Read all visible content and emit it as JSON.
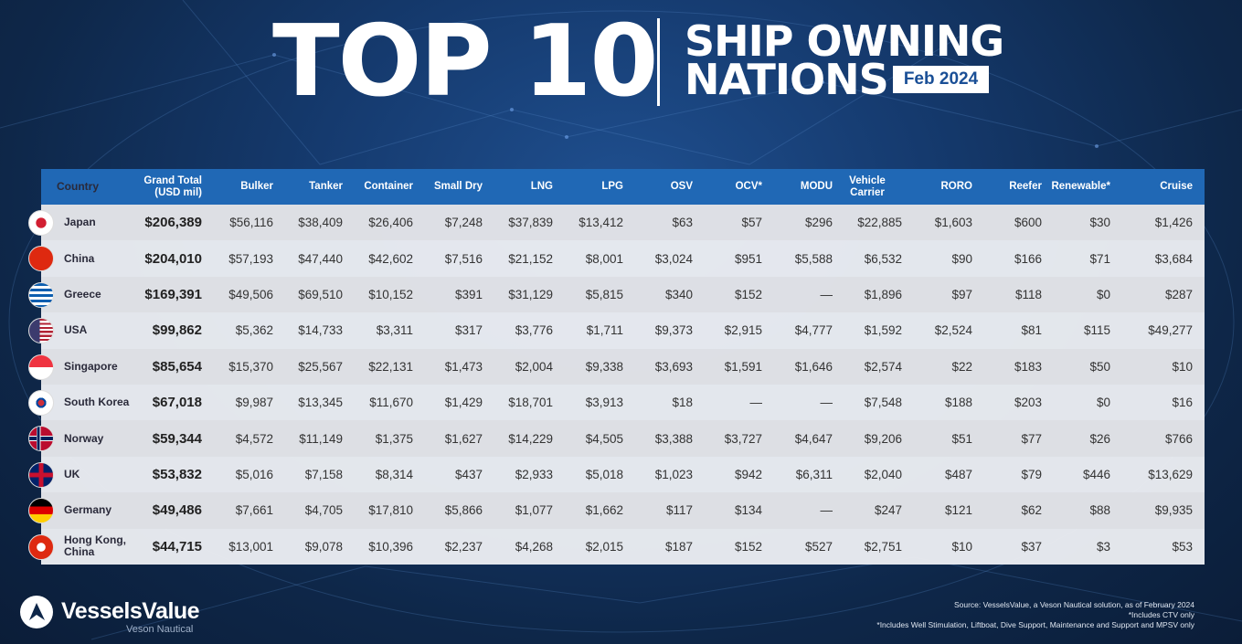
{
  "header": {
    "title_big": "TOP 10",
    "subtitle_line1": "SHIP OWNING",
    "subtitle_line2": "NATIONS",
    "date_badge": "Feb 2024"
  },
  "footer": {
    "source": "Source: VesselsValue, a Veson Nautical solution, as of February 2024",
    "note1": "*Includes CTV only",
    "note2": "*Includes Well Stimulation, Liftboat, Dive Support, Maintenance and Support and MPSV only"
  },
  "logo": {
    "name": "VesselsValue",
    "tagline": "Veson Nautical"
  },
  "colors": {
    "header_bg": "#2068b5",
    "badge_text": "#1a4f96",
    "background": "#153a6e"
  },
  "chart_data": {
    "type": "table",
    "title": "TOP 10 SHIP OWNING NATIONS Feb 2024",
    "columns": [
      "Country",
      "Grand Total (USD mil)",
      "Bulker",
      "Tanker",
      "Container",
      "Small Dry",
      "LNG",
      "LPG",
      "OSV",
      "OCV*",
      "MODU",
      "Vehicle Carrier",
      "RORO",
      "Reefer",
      "Renewable*",
      "Cruise"
    ],
    "rows": [
      {
        "flag": "japan",
        "cells": [
          "Japan",
          "$206,389",
          "$56,116",
          "$38,409",
          "$26,406",
          "$7,248",
          "$37,839",
          "$13,412",
          "$63",
          "$57",
          "$296",
          "$22,885",
          "$1,603",
          "$600",
          "$30",
          "$1,426"
        ]
      },
      {
        "flag": "china",
        "cells": [
          "China",
          "$204,010",
          "$57,193",
          "$47,440",
          "$42,602",
          "$7,516",
          "$21,152",
          "$8,001",
          "$3,024",
          "$951",
          "$5,588",
          "$6,532",
          "$90",
          "$166",
          "$71",
          "$3,684"
        ]
      },
      {
        "flag": "greece",
        "cells": [
          "Greece",
          "$169,391",
          "$49,506",
          "$69,510",
          "$10,152",
          "$391",
          "$31,129",
          "$5,815",
          "$340",
          "$152",
          "—",
          "$1,896",
          "$97",
          "$118",
          "$0",
          "$287"
        ]
      },
      {
        "flag": "usa",
        "cells": [
          "USA",
          "$99,862",
          "$5,362",
          "$14,733",
          "$3,311",
          "$317",
          "$3,776",
          "$1,711",
          "$9,373",
          "$2,915",
          "$4,777",
          "$1,592",
          "$2,524",
          "$81",
          "$115",
          "$49,277"
        ]
      },
      {
        "flag": "singapore",
        "cells": [
          "Singapore",
          "$85,654",
          "$15,370",
          "$25,567",
          "$22,131",
          "$1,473",
          "$2,004",
          "$9,338",
          "$3,693",
          "$1,591",
          "$1,646",
          "$2,574",
          "$22",
          "$183",
          "$50",
          "$10"
        ]
      },
      {
        "flag": "south-korea",
        "cells": [
          "South Korea",
          "$67,018",
          "$9,987",
          "$13,345",
          "$11,670",
          "$1,429",
          "$18,701",
          "$3,913",
          "$18",
          "—",
          "—",
          "$7,548",
          "$188",
          "$203",
          "$0",
          "$16"
        ]
      },
      {
        "flag": "norway",
        "cells": [
          "Norway",
          "$59,344",
          "$4,572",
          "$11,149",
          "$1,375",
          "$1,627",
          "$14,229",
          "$4,505",
          "$3,388",
          "$3,727",
          "$4,647",
          "$9,206",
          "$51",
          "$77",
          "$26",
          "$766"
        ]
      },
      {
        "flag": "uk",
        "cells": [
          "UK",
          "$53,832",
          "$5,016",
          "$7,158",
          "$8,314",
          "$437",
          "$2,933",
          "$5,018",
          "$1,023",
          "$942",
          "$6,311",
          "$2,040",
          "$487",
          "$79",
          "$446",
          "$13,629"
        ]
      },
      {
        "flag": "germany",
        "cells": [
          "Germany",
          "$49,486",
          "$7,661",
          "$4,705",
          "$17,810",
          "$5,866",
          "$1,077",
          "$1,662",
          "$117",
          "$134",
          "—",
          "$247",
          "$121",
          "$62",
          "$88",
          "$9,935"
        ]
      },
      {
        "flag": "hong-kong",
        "cells": [
          "Hong Kong, China",
          "$44,715",
          "$13,001",
          "$9,078",
          "$10,396",
          "$2,237",
          "$4,268",
          "$2,015",
          "$187",
          "$152",
          "$527",
          "$2,751",
          "$10",
          "$37",
          "$3",
          "$53"
        ]
      }
    ]
  }
}
